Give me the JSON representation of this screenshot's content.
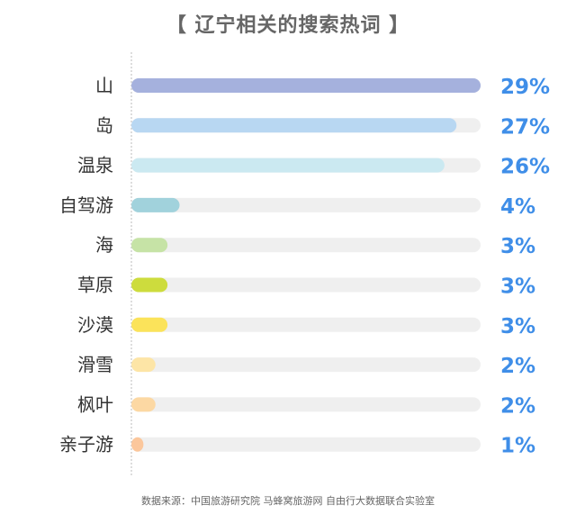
{
  "chart_data": {
    "type": "bar",
    "orientation": "horizontal",
    "title": "【 辽宁相关的搜索热词 】",
    "categories": [
      "山",
      "岛",
      "温泉",
      "自驾游",
      "海",
      "草原",
      "沙漠",
      "滑雪",
      "枫叶",
      "亲子游"
    ],
    "values": [
      29,
      27,
      26,
      4,
      3,
      3,
      3,
      2,
      2,
      1
    ],
    "value_labels": [
      "29%",
      "27%",
      "26%",
      "4%",
      "3%",
      "3%",
      "3%",
      "2%",
      "2%",
      "1%"
    ],
    "bar_colors": [
      "#a5b1dd",
      "#b8d7f2",
      "#cbe9f1",
      "#a1d2dc",
      "#c6e3a6",
      "#cddc3d",
      "#fbe35a",
      "#fde5a6",
      "#fcd8a3",
      "#fbc79c"
    ],
    "track_color": "#efefef",
    "value_label_color": "#3f8ee8",
    "xlim": [
      0,
      29
    ],
    "grid": false,
    "legend": "none",
    "source_text": "数据来源：中国旅游研究院 马蜂窝旅游网 自由行大数据联合实验室"
  }
}
